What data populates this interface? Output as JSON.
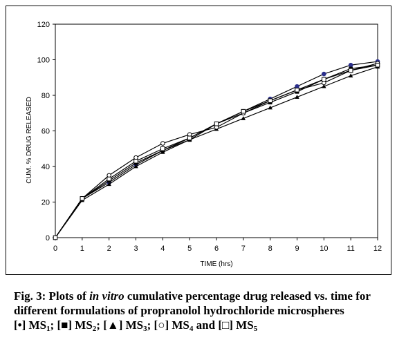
{
  "chart_data": {
    "type": "line",
    "xlabel": "TIME (hrs)",
    "ylabel": "CUM. % DRUG RELEASED",
    "xlim": [
      0,
      12
    ],
    "ylim": [
      0,
      120
    ],
    "xticks": [
      "0",
      "1",
      "2",
      "3",
      "4",
      "5",
      "6",
      "7",
      "8",
      "9",
      "10",
      "11",
      "12"
    ],
    "yticks": [
      "0",
      "20",
      "40",
      "60",
      "80",
      "100",
      "120"
    ],
    "grid": false,
    "x": [
      0,
      1,
      2,
      3,
      4,
      5,
      6,
      7,
      8,
      9,
      10,
      11,
      12
    ],
    "series": [
      {
        "name": "MS1",
        "marker": "filled-circle",
        "color": "#2b2f8c",
        "values": [
          0,
          22,
          31,
          41,
          49,
          56,
          64,
          71,
          78,
          85,
          92,
          97,
          99
        ]
      },
      {
        "name": "MS2",
        "marker": "filled-square",
        "color": "#000000",
        "values": [
          0,
          22,
          32,
          42,
          49,
          55,
          64,
          70,
          76,
          82,
          89,
          95,
          97
        ]
      },
      {
        "name": "MS3",
        "marker": "filled-triangle",
        "color": "#000000",
        "values": [
          0,
          21,
          30,
          40,
          48,
          55,
          61,
          67,
          73,
          79,
          85,
          91,
          96
        ]
      },
      {
        "name": "MS4",
        "marker": "open-circle",
        "color": "#000000",
        "values": [
          0,
          22,
          35,
          45,
          53,
          58,
          62,
          70,
          77,
          83,
          87,
          94,
          98
        ]
      },
      {
        "name": "MS5",
        "marker": "open-square",
        "color": "#000000",
        "values": [
          0,
          22,
          33,
          43,
          50,
          56,
          64,
          71,
          77,
          83,
          89,
          94,
          97
        ]
      }
    ]
  },
  "caption": {
    "fig_label": "Fig. 3:",
    "text_before": "Plots of",
    "italic_text": "in vitro",
    "text_after": "cumulative percentage drug released vs. time for different formulations of propranolol hydrochloride microspheres"
  },
  "legend": [
    {
      "symbol": "[•]",
      "label": "MS",
      "sub": "1",
      "sep": ";"
    },
    {
      "symbol": "[■]",
      "label": "MS",
      "sub": "2",
      "sep": ";"
    },
    {
      "symbol": "[▲]",
      "label": "MS",
      "sub": "3",
      "sep": ";"
    },
    {
      "symbol": "[○]",
      "label": "MS",
      "sub": "4",
      "sep": " and"
    },
    {
      "symbol": "[□]",
      "label": "MS",
      "sub": "5",
      "sep": ""
    }
  ]
}
